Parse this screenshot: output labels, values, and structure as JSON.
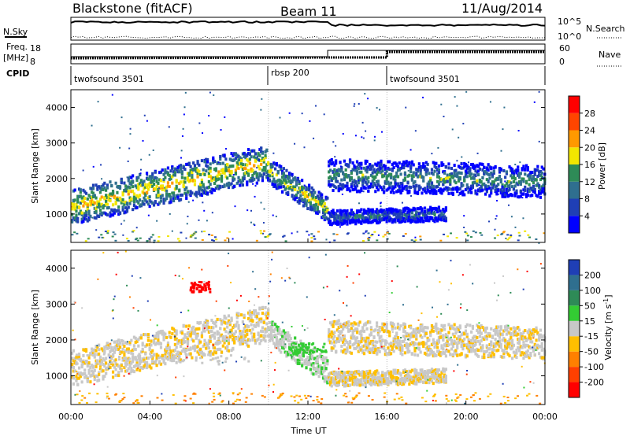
{
  "header": {
    "title": "Blackstone (fitACF)",
    "beam": "Beam 11",
    "date": "11/Aug/2014"
  },
  "top_panels": {
    "nsky_label": "N.Sky",
    "nsky_ticks": [
      "10^5",
      "10^0"
    ],
    "nsearch_label": "N.Search",
    "freq_label_1": "Freq.",
    "freq_label_2": "[MHz]",
    "freq_ticks": [
      "18",
      "8"
    ],
    "nave_label": "Nave",
    "nave_ticks": [
      "60",
      "0"
    ],
    "cpid_label": "CPID",
    "cpid_segments": [
      {
        "label": "twofsound 3501",
        "start": 0,
        "end": 10
      },
      {
        "label": "rbsp 200",
        "start": 10,
        "end": 16
      },
      {
        "label": "twofsound 3501",
        "start": 16,
        "end": 24
      }
    ]
  },
  "axes": {
    "x_label": "Time UT",
    "x_ticks": [
      "00:00",
      "04:00",
      "08:00",
      "12:00",
      "16:00",
      "20:00",
      "00:00"
    ],
    "y_label": "Slant Range [km]",
    "y_ticks": [
      "1000",
      "2000",
      "3000",
      "4000"
    ]
  },
  "power_colorbar": {
    "label": "Power [dB]",
    "ticks": [
      "4",
      "8",
      "12",
      "16",
      "20",
      "24",
      "28"
    ],
    "colors": [
      "#0000ff",
      "#1f3fb5",
      "#2f6f8f",
      "#2e8b57",
      "#f2e600",
      "#ff9900",
      "#ff4500",
      "#ff0000"
    ]
  },
  "velocity_colorbar": {
    "label": "Velocity [m s-1]",
    "ticks": [
      "200",
      "100",
      "50",
      "15",
      "-15",
      "-50",
      "-100",
      "-200"
    ],
    "colors": [
      "#1f3fb5",
      "#2f6f8f",
      "#2e8b57",
      "#33cc33",
      "#c8c8c8",
      "#ffbf00",
      "#ff8000",
      "#ff4000",
      "#ff0000"
    ]
  },
  "chart_data": {
    "type": "heatmap",
    "x_unit": "hours UT",
    "x_range": [
      0,
      24
    ],
    "y_range": [
      200,
      4500
    ],
    "power_bands": [
      {
        "t_start": 0,
        "t_end": 10,
        "range_start": 1200,
        "range_end": 2450,
        "spread": 500,
        "power": 18
      },
      {
        "t_start": 10,
        "t_end": 13,
        "range_start": 2200,
        "range_end": 1100,
        "spread": 350,
        "power": 16
      },
      {
        "t_start": 13,
        "t_end": 24,
        "range_start": 2100,
        "range_end": 1900,
        "spread": 450,
        "power": 12
      },
      {
        "t_start": 13,
        "t_end": 19,
        "range_start": 900,
        "range_end": 1000,
        "spread": 200,
        "power": 9
      }
    ],
    "velocity_notes": [
      {
        "t_start": 6,
        "t_end": 7,
        "range": 3500,
        "velocity": -200
      },
      {
        "t_start": 0,
        "t_end": 9,
        "range": 1500,
        "velocity": 0
      },
      {
        "t_start": 11,
        "t_end": 13,
        "range": 1800,
        "velocity": 20
      }
    ]
  }
}
